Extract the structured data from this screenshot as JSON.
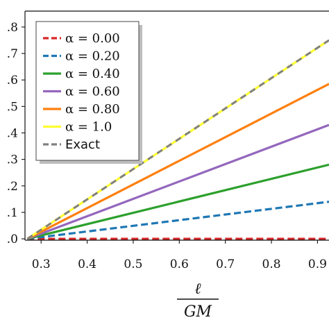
{
  "chart_data": {
    "type": "line",
    "xlabel_numerator": "ℓ",
    "xlabel_denominator": "GM",
    "ylabel": "",
    "title": "",
    "xlim": [
      0.265,
      0.925
    ],
    "ylim": [
      -0.005,
      0.86
    ],
    "x_ticks": [
      0.3,
      0.4,
      0.5,
      0.6,
      0.7,
      0.8,
      0.9
    ],
    "x_tick_labels": [
      "0.3",
      "0.4",
      "0.5",
      "0.6",
      "0.7",
      "0.8",
      "0.9"
    ],
    "y_ticks": [
      0.0,
      0.1,
      0.2,
      0.3,
      0.4,
      0.5,
      0.6,
      0.7,
      0.8
    ],
    "y_tick_labels": [
      ".0",
      ".1",
      ".2",
      ".3",
      ".4",
      ".5",
      ".6",
      ".7",
      ".8"
    ],
    "grid": false,
    "legend_position": "top-left",
    "series": [
      {
        "name": "α = 0.00",
        "color": "#d62728",
        "dashed": true,
        "x": [
          0.27,
          0.925
        ],
        "y": [
          0.0,
          0.0
        ]
      },
      {
        "name": "α = 0.20",
        "color": "#1f77b4",
        "dashed": true,
        "x": [
          0.27,
          0.925
        ],
        "y": [
          0.0,
          0.14
        ]
      },
      {
        "name": "α = 0.40",
        "color": "#2ca02c",
        "dashed": false,
        "x": [
          0.27,
          0.925
        ],
        "y": [
          0.0,
          0.28
        ]
      },
      {
        "name": "α = 0.60",
        "color": "#9467bd",
        "dashed": false,
        "x": [
          0.27,
          0.925
        ],
        "y": [
          0.0,
          0.43
        ]
      },
      {
        "name": "α = 0.80",
        "color": "#ff7f0e",
        "dashed": false,
        "x": [
          0.27,
          0.925
        ],
        "y": [
          0.0,
          0.585
        ]
      },
      {
        "name": "α = 1.0",
        "color": "#ffff33",
        "dashed": false,
        "x": [
          0.27,
          0.925
        ],
        "y": [
          0.0,
          0.75
        ]
      },
      {
        "name": "Exact",
        "color": "#808080",
        "dashed": true,
        "x": [
          0.27,
          0.925
        ],
        "y": [
          0.0,
          0.75
        ]
      }
    ]
  }
}
